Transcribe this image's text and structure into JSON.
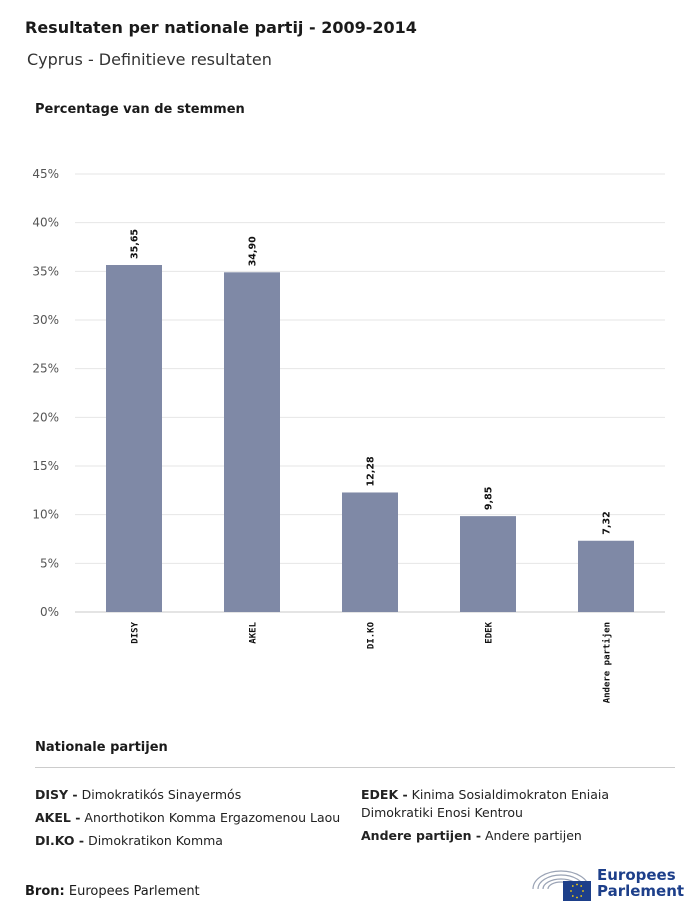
{
  "header": {
    "title": "Resultaten per nationale partij - 2009-2014",
    "subtitle": "Cyprus - Definitieve resultaten"
  },
  "chart_data": {
    "type": "bar",
    "ylabel": "Percentage van de stemmen",
    "categories": [
      "DISY",
      "AKEL",
      "DI.KO",
      "EDEK",
      "Andere partijen"
    ],
    "values": [
      35.65,
      34.9,
      12.28,
      9.85,
      7.32
    ],
    "value_labels": [
      "35,65",
      "34,90",
      "12,28",
      "9,85",
      "7,32"
    ],
    "yticks": [
      "0%",
      "5%",
      "10%",
      "15%",
      "20%",
      "25%",
      "30%",
      "35%",
      "40%",
      "45%"
    ],
    "ylim": [
      0,
      45
    ],
    "grid": true,
    "bar_color": "#7f89a6"
  },
  "legend": {
    "title": "Nationale partijen",
    "left": [
      {
        "abbr": "DISY -",
        "name": "Dimokratikós Sinayermós"
      },
      {
        "abbr": "AKEL -",
        "name": "Anorthotikon Komma Ergazomenou Laou"
      },
      {
        "abbr": "DI.KO -",
        "name": "Dimokratikon Komma"
      }
    ],
    "right": [
      {
        "abbr": "EDEK -",
        "name": "Kinima Sosialdimokraton Eniaia Dimokratiki Enosi Kentrou"
      },
      {
        "abbr": "Andere partijen -",
        "name": "Andere partijen"
      }
    ]
  },
  "footer": {
    "source_label": "Bron:",
    "source_value": "Europees Parlement",
    "logo_line1": "Europees",
    "logo_line2": "Parlement",
    "logo_icon": "european-parliament-hemicycle-icon",
    "flag_icon": "eu-flag-icon"
  }
}
